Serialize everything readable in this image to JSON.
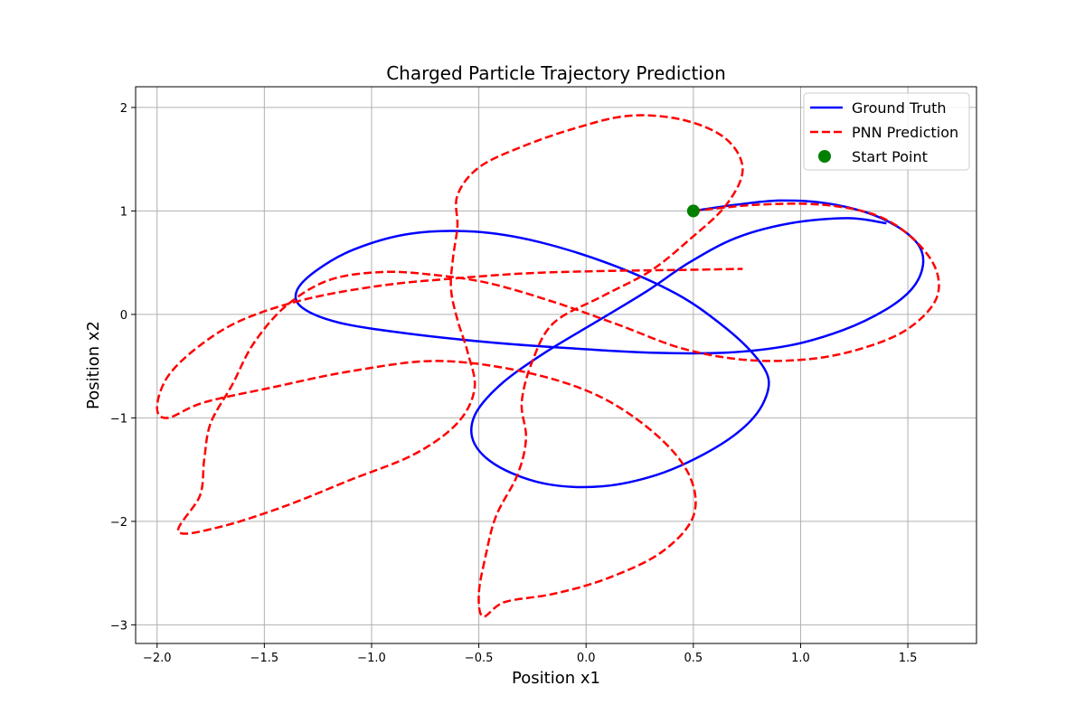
{
  "chart_data": {
    "type": "line",
    "title": "Charged Particle Trajectory Prediction",
    "xlabel": "Position x1",
    "ylabel": "Position x2",
    "xlim": [
      -2.1,
      1.82
    ],
    "ylim": [
      -3.18,
      2.2
    ],
    "xticks": [
      -2.0,
      -1.5,
      -1.0,
      -0.5,
      0.0,
      0.5,
      1.0,
      1.5
    ],
    "xtick_labels": [
      "−2.0",
      "−1.5",
      "−1.0",
      "−0.5",
      "0.0",
      "0.5",
      "1.0",
      "1.5"
    ],
    "yticks": [
      -3,
      -2,
      -1,
      0,
      1,
      2
    ],
    "ytick_labels": [
      "−3",
      "−2",
      "−1",
      "0",
      "1",
      "2"
    ],
    "grid": true,
    "legend_position": "top-right",
    "series": [
      {
        "name": "Ground Truth",
        "color": "#0000ff",
        "style": "solid",
        "points": [
          [
            0.5,
            1.0
          ],
          [
            0.7,
            1.06
          ],
          [
            0.9,
            1.1
          ],
          [
            1.1,
            1.08
          ],
          [
            1.3,
            0.99
          ],
          [
            1.45,
            0.85
          ],
          [
            1.55,
            0.67
          ],
          [
            1.57,
            0.47
          ],
          [
            1.52,
            0.25
          ],
          [
            1.4,
            0.05
          ],
          [
            1.2,
            -0.15
          ],
          [
            0.95,
            -0.3
          ],
          [
            0.65,
            -0.37
          ],
          [
            0.3,
            -0.37
          ],
          [
            -0.05,
            -0.33
          ],
          [
            -0.45,
            -0.27
          ],
          [
            -0.85,
            -0.18
          ],
          [
            -1.15,
            -0.08
          ],
          [
            -1.32,
            0.06
          ],
          [
            -1.35,
            0.22
          ],
          [
            -1.26,
            0.42
          ],
          [
            -1.08,
            0.63
          ],
          [
            -0.82,
            0.78
          ],
          [
            -0.52,
            0.8
          ],
          [
            -0.22,
            0.7
          ],
          [
            0.12,
            0.48
          ],
          [
            0.42,
            0.2
          ],
          [
            0.62,
            -0.08
          ],
          [
            0.77,
            -0.36
          ],
          [
            0.85,
            -0.62
          ],
          [
            0.82,
            -0.88
          ],
          [
            0.72,
            -1.12
          ],
          [
            0.55,
            -1.35
          ],
          [
            0.33,
            -1.55
          ],
          [
            0.08,
            -1.66
          ],
          [
            -0.18,
            -1.64
          ],
          [
            -0.4,
            -1.48
          ],
          [
            -0.52,
            -1.25
          ],
          [
            -0.52,
            -0.98
          ],
          [
            -0.4,
            -0.68
          ],
          [
            -0.2,
            -0.38
          ],
          [
            0.04,
            -0.08
          ],
          [
            0.28,
            0.22
          ],
          [
            0.48,
            0.5
          ],
          [
            0.7,
            0.74
          ],
          [
            0.95,
            0.88
          ],
          [
            1.22,
            0.93
          ],
          [
            1.4,
            0.88
          ]
        ]
      },
      {
        "name": "PNN Prediction",
        "color": "#ff0000",
        "style": "dashed",
        "points": [
          [
            0.5,
            1.0
          ],
          [
            0.8,
            1.06
          ],
          [
            1.1,
            1.06
          ],
          [
            1.35,
            0.96
          ],
          [
            1.52,
            0.74
          ],
          [
            1.63,
            0.44
          ],
          [
            1.63,
            0.14
          ],
          [
            1.5,
            -0.14
          ],
          [
            1.3,
            -0.32
          ],
          [
            1.05,
            -0.43
          ],
          [
            0.75,
            -0.44
          ],
          [
            0.45,
            -0.33
          ],
          [
            0.15,
            -0.1
          ],
          [
            -0.15,
            0.12
          ],
          [
            -0.45,
            0.3
          ],
          [
            -0.7,
            0.38
          ],
          [
            -0.95,
            0.41
          ],
          [
            -1.2,
            0.33
          ],
          [
            -1.4,
            0.08
          ],
          [
            -1.55,
            -0.28
          ],
          [
            -1.65,
            -0.68
          ],
          [
            -1.75,
            -1.05
          ],
          [
            -1.78,
            -1.4
          ],
          [
            -1.8,
            -1.75
          ],
          [
            -1.9,
            -2.1
          ],
          [
            -1.7,
            -2.05
          ],
          [
            -1.4,
            -1.85
          ],
          [
            -1.1,
            -1.6
          ],
          [
            -0.8,
            -1.35
          ],
          [
            -0.6,
            -1.05
          ],
          [
            -0.52,
            -0.72
          ],
          [
            -0.55,
            -0.38
          ],
          [
            -0.6,
            -0.05
          ],
          [
            -0.63,
            0.25
          ],
          [
            -0.62,
            0.55
          ],
          [
            -0.6,
            0.85
          ],
          [
            -0.6,
            1.15
          ],
          [
            -0.5,
            1.42
          ],
          [
            -0.3,
            1.62
          ],
          [
            -0.05,
            1.8
          ],
          [
            0.2,
            1.92
          ],
          [
            0.45,
            1.88
          ],
          [
            0.65,
            1.7
          ],
          [
            0.73,
            1.4
          ],
          [
            0.65,
            1.05
          ],
          [
            0.48,
            0.72
          ],
          [
            0.3,
            0.42
          ],
          [
            0.08,
            0.18
          ],
          [
            -0.15,
            -0.08
          ],
          [
            -0.25,
            -0.45
          ],
          [
            -0.3,
            -0.85
          ],
          [
            -0.28,
            -1.2
          ],
          [
            -0.32,
            -1.55
          ],
          [
            -0.42,
            -1.95
          ],
          [
            -0.47,
            -2.35
          ],
          [
            -0.5,
            -2.7
          ],
          [
            -0.48,
            -2.92
          ],
          [
            -0.38,
            -2.78
          ],
          [
            -0.15,
            -2.7
          ],
          [
            0.1,
            -2.55
          ],
          [
            0.35,
            -2.3
          ],
          [
            0.5,
            -1.95
          ],
          [
            0.48,
            -1.55
          ],
          [
            0.32,
            -1.15
          ],
          [
            0.05,
            -0.78
          ],
          [
            -0.3,
            -0.55
          ],
          [
            -0.7,
            -0.45
          ],
          [
            -1.1,
            -0.55
          ],
          [
            -1.45,
            -0.7
          ],
          [
            -1.78,
            -0.85
          ],
          [
            -1.95,
            -1.0
          ],
          [
            -2.0,
            -0.9
          ],
          [
            -1.95,
            -0.6
          ],
          [
            -1.8,
            -0.3
          ],
          [
            -1.6,
            -0.05
          ],
          [
            -1.3,
            0.15
          ],
          [
            -0.95,
            0.28
          ],
          [
            -0.6,
            0.35
          ],
          [
            -0.25,
            0.4
          ],
          [
            0.1,
            0.42
          ],
          [
            0.45,
            0.43
          ],
          [
            0.73,
            0.44
          ]
        ]
      }
    ],
    "start_point": {
      "name": "Start Point",
      "x": 0.5,
      "y": 1.0,
      "color": "#008000"
    },
    "legend": [
      {
        "label": "Ground Truth",
        "type": "line-solid",
        "color": "#0000ff"
      },
      {
        "label": "PNN Prediction",
        "type": "line-dashed",
        "color": "#ff0000"
      },
      {
        "label": "Start Point",
        "type": "marker",
        "color": "#008000"
      }
    ]
  }
}
